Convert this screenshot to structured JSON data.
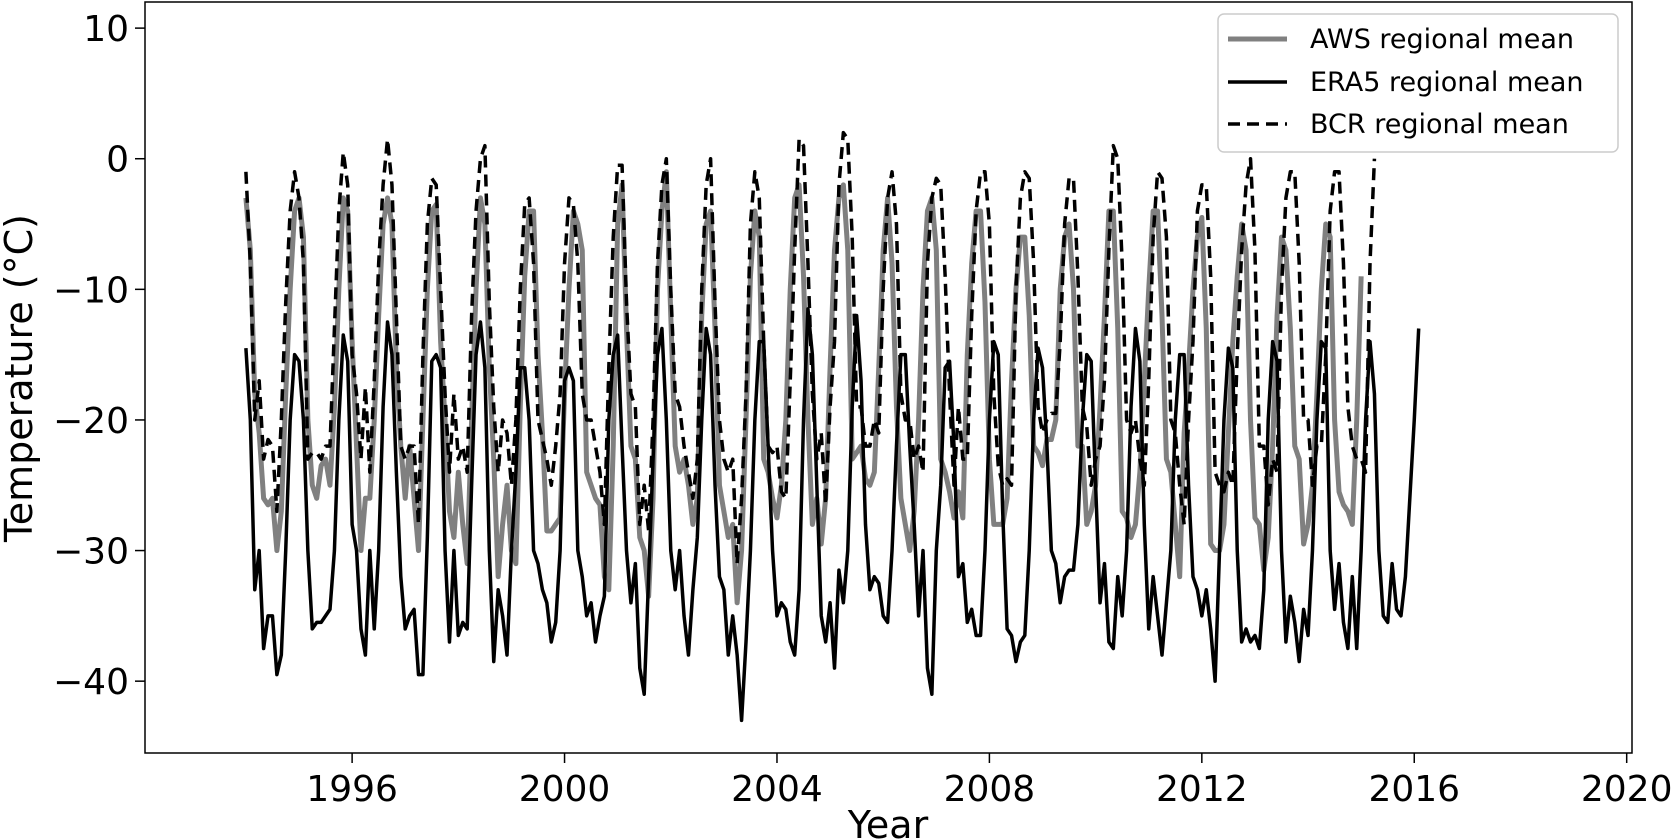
{
  "chart_data": {
    "type": "line",
    "title": "",
    "xlabel": "Year",
    "ylabel": "Temperature (°C)",
    "xlim": [
      1992.1,
      2020.1
    ],
    "ylim": [
      -45.5,
      12
    ],
    "x_ticks": [
      1996,
      2000,
      2004,
      2008,
      2012,
      2016,
      2020
    ],
    "y_ticks": [
      -40,
      -30,
      -20,
      -10,
      0,
      10
    ],
    "y_tick_labels": [
      "−40",
      "−30",
      "−20",
      "−10",
      "0",
      "10"
    ],
    "grid": false,
    "legend_position": "top-right",
    "x_start_year": 1994.0,
    "x_step_years": 0.0833333,
    "series": [
      {
        "name": "AWS regional mean",
        "color": "#808080",
        "style": "solid",
        "values": [
          -3,
          -7,
          -18,
          -21,
          -26,
          -26.5,
          -26,
          -30,
          -27,
          -18,
          -10,
          -4,
          -3,
          -6,
          -20,
          -25,
          -26,
          -23.5,
          -23,
          -25,
          -19,
          -10,
          -3,
          -4,
          -14,
          -22,
          -30,
          -26,
          -26,
          -20,
          -12,
          -5,
          -3,
          -5,
          -16,
          -22,
          -26,
          -22,
          -26,
          -30,
          -20,
          -10,
          -4,
          -3.5,
          -14,
          -20,
          -27,
          -29,
          -24,
          -28,
          -31,
          -20,
          -10,
          -3,
          -5,
          -16,
          -23,
          -32,
          -28,
          -25,
          -30,
          -31,
          -19,
          -9,
          -4,
          -4,
          -15,
          -21,
          -28.5,
          -28.5,
          -28,
          -27.5,
          -18,
          -10,
          -4,
          -5,
          -7,
          -24,
          -25,
          -26,
          -26.5,
          -32,
          -33,
          -22,
          -5,
          -2,
          -13,
          -22,
          -23,
          -29,
          -30,
          -33.5,
          -26,
          -10,
          -4,
          -1,
          -12,
          -22,
          -24,
          -23,
          -25,
          -28,
          -26,
          -12,
          -5,
          -4,
          -13,
          -25,
          -27,
          -29,
          -28,
          -34,
          -30,
          -20,
          -9,
          -4,
          -6,
          -23,
          -24,
          -26,
          -27.5,
          -25,
          -20,
          -10,
          -3,
          -2,
          -9,
          -20,
          -28,
          -26,
          -29.5,
          -26,
          -16,
          -7,
          -3,
          -2,
          -7,
          -23,
          -22.5,
          -22,
          -24.5,
          -25,
          -24,
          -16,
          -7,
          -3,
          -8,
          -19,
          -26,
          -28,
          -30,
          -27,
          -20,
          -10,
          -4,
          -3,
          -7,
          -23,
          -24,
          -25.5,
          -27.5,
          -25.5,
          -27.5,
          -15,
          -8,
          -4,
          -4,
          -11,
          -23,
          -28,
          -28,
          -28,
          -26,
          -17,
          -10,
          -6,
          -6,
          -12,
          -22,
          -22.5,
          -23.5,
          -21.5,
          -21.5,
          -20,
          -10,
          -6,
          -5,
          -10,
          -22,
          -22,
          -28,
          -27,
          -25,
          -19,
          -12,
          -4,
          -4,
          -13,
          -27,
          -27.5,
          -29,
          -28,
          -24,
          -17,
          -10,
          -4,
          -4,
          -12,
          -23,
          -24,
          -28,
          -32,
          -21,
          -16,
          -10,
          -6,
          -4.5,
          -13,
          -29.5,
          -30,
          -30,
          -28,
          -21,
          -14,
          -9,
          -5,
          -7,
          -20,
          -27.5,
          -28,
          -31.5,
          -29,
          -22,
          -12,
          -6,
          -7,
          -13,
          -22,
          -23,
          -29.5,
          -28,
          -25,
          -18,
          -10,
          -5,
          -6,
          -20,
          -25.5,
          -26.5,
          -27,
          -28,
          -20,
          -9
        ],
        "data_name": "series-aws-line"
      },
      {
        "name": "ERA5 regional mean",
        "color": "#000000",
        "style": "solid",
        "values": [
          -14.5,
          -20,
          -33,
          -30,
          -37.5,
          -35,
          -35,
          -39.5,
          -38,
          -30,
          -20,
          -15,
          -15.5,
          -20,
          -30,
          -36,
          -35.5,
          -35.5,
          -35,
          -34.5,
          -30,
          -20,
          -13.5,
          -15.5,
          -28,
          -30,
          -36,
          -38,
          -30,
          -36,
          -30,
          -19,
          -12.5,
          -15,
          -24,
          -32,
          -36,
          -35,
          -34.5,
          -39.5,
          -39.5,
          -29,
          -15.5,
          -15,
          -16,
          -30,
          -37,
          -30,
          -36.5,
          -35.5,
          -36,
          -25,
          -15,
          -12.5,
          -16,
          -30,
          -38.5,
          -33,
          -35,
          -38,
          -30,
          -24,
          -16,
          -16,
          -20,
          -30,
          -31,
          -33,
          -34,
          -37,
          -35.5,
          -30,
          -17,
          -16,
          -17,
          -30,
          -32,
          -35,
          -34,
          -37,
          -35,
          -33.5,
          -20,
          -15,
          -13.5,
          -22,
          -30,
          -34,
          -31,
          -39,
          -41,
          -32,
          -23,
          -15,
          -13,
          -20,
          -30,
          -33,
          -30,
          -35,
          -38,
          -33,
          -29,
          -20,
          -13,
          -15,
          -25,
          -32,
          -33,
          -38,
          -35,
          -38,
          -43,
          -37,
          -30,
          -20,
          -14,
          -14,
          -22,
          -30,
          -35,
          -34,
          -34.5,
          -37,
          -38,
          -33,
          -20,
          -11.5,
          -15,
          -25,
          -35,
          -37,
          -34,
          -39,
          -31.5,
          -34,
          -30,
          -19,
          -12,
          -17,
          -28,
          -33,
          -32,
          -32.5,
          -35,
          -35.5,
          -30,
          -22,
          -15,
          -15,
          -22,
          -28,
          -35,
          -30,
          -39,
          -41,
          -30,
          -25,
          -16,
          -15.5,
          -22,
          -32,
          -31,
          -35.5,
          -34.5,
          -36.5,
          -36.5,
          -30,
          -20,
          -14,
          -15,
          -27,
          -36,
          -36.5,
          -38.5,
          -37,
          -36.5,
          -30,
          -20,
          -14.5,
          -16,
          -22,
          -30,
          -31,
          -34,
          -32,
          -31.5,
          -31.5,
          -28,
          -20,
          -15,
          -15.5,
          -25,
          -34,
          -31,
          -37,
          -37.5,
          -32,
          -35,
          -30,
          -19,
          -13,
          -15.5,
          -28,
          -36,
          -32,
          -35,
          -38,
          -34,
          -30,
          -20,
          -15,
          -15,
          -25,
          -32,
          -33,
          -35,
          -33,
          -36,
          -40,
          -30,
          -20,
          -14.5,
          -16,
          -30,
          -37,
          -36,
          -37,
          -36.5,
          -37.5,
          -33,
          -20,
          -14,
          -15.5,
          -30,
          -37,
          -33.5,
          -35.5,
          -38.5,
          -34.5,
          -36.5,
          -30,
          -20,
          -14,
          -14.5,
          -30,
          -34.5,
          -31,
          -35.5,
          -37.5,
          -32,
          -37.5,
          -30,
          -20,
          -14,
          -18,
          -30,
          -35,
          -35.5,
          -31,
          -34.5,
          -35,
          -32,
          -26,
          -20,
          -13
        ],
        "data_name": "series-era5-line"
      },
      {
        "name": "BCR regional mean",
        "color": "#000000",
        "style": "dashed",
        "values": [
          -1,
          -8,
          -20,
          -17,
          -23,
          -21.5,
          -22,
          -27,
          -20,
          -11,
          -4,
          -1,
          -3,
          -8,
          -23,
          -22.5,
          -22.5,
          -23,
          -22,
          -22,
          -13,
          -4,
          0.5,
          -2,
          -15,
          -18,
          -23,
          -17.5,
          -24,
          -17,
          -8,
          -2,
          1.5,
          -2,
          -12,
          -22,
          -23,
          -22,
          -22,
          -28,
          -15,
          -5,
          -1.5,
          -2,
          -10,
          -18,
          -24,
          -18,
          -23,
          -22,
          -24,
          -12,
          -4,
          0,
          1,
          -11,
          -19,
          -24,
          -20,
          -21,
          -25,
          -20,
          -10,
          -3.5,
          -3,
          -8,
          -20,
          -21.5,
          -23,
          -25,
          -22,
          -18,
          -8,
          -3,
          -3.5,
          -8,
          -18,
          -20,
          -20,
          -22,
          -24,
          -28,
          -16,
          -6,
          -0.5,
          -0.5,
          -11,
          -18,
          -19,
          -28,
          -25,
          -28.5,
          -20,
          -8,
          -2,
          0,
          -10,
          -18,
          -19,
          -22,
          -24,
          -26,
          -23,
          -10,
          -2,
          0,
          -11,
          -20,
          -23,
          -24,
          -23,
          -31,
          -26,
          -18,
          -5,
          -1,
          -3,
          -14,
          -22,
          -22.5,
          -22,
          -25.5,
          -26,
          -17,
          -7,
          1.5,
          1,
          -8,
          -18,
          -23,
          -21,
          -26.5,
          -19,
          -14,
          -2,
          2,
          1.5,
          -6,
          -19,
          -19,
          -22,
          -22,
          -20,
          -21,
          -10,
          -3,
          -1,
          -5,
          -18,
          -20,
          -20,
          -23,
          -22,
          -24,
          -8,
          -3,
          -1.5,
          -2,
          -9,
          -18,
          -25,
          -19,
          -23,
          -23,
          -12,
          -4,
          -1,
          -1,
          -5,
          -18,
          -23.5,
          -25,
          -24.5,
          -25,
          -10,
          -3,
          -1,
          -1.5,
          -8,
          -19,
          -21,
          -20,
          -19.5,
          -19.5,
          -14,
          -5,
          -1.5,
          -1.5,
          -9,
          -19,
          -20.5,
          -25,
          -23,
          -22,
          -17,
          -7,
          1,
          0,
          -8,
          -20,
          -21,
          -20,
          -23,
          -25,
          -17,
          -6,
          -1,
          -1.5,
          -6,
          -20,
          -21,
          -25,
          -28,
          -20,
          -14,
          -4,
          -2,
          -2,
          -9,
          -24,
          -25,
          -25.5,
          -24,
          -25,
          -15,
          -7,
          -2,
          0,
          -7,
          -22,
          -22,
          -26.5,
          -23,
          -24,
          -10,
          -3,
          -1,
          -1,
          -8,
          -20,
          -20,
          -25,
          -22,
          -22,
          -15,
          -4,
          -1,
          -1,
          -8,
          -19,
          -22,
          -23,
          -23,
          -24,
          -8,
          0
        ]
      }
    ]
  },
  "legend": {
    "aws_label": "AWS regional mean",
    "era5_label": "ERA5 regional mean",
    "bcr_label": "BCR regional mean"
  }
}
